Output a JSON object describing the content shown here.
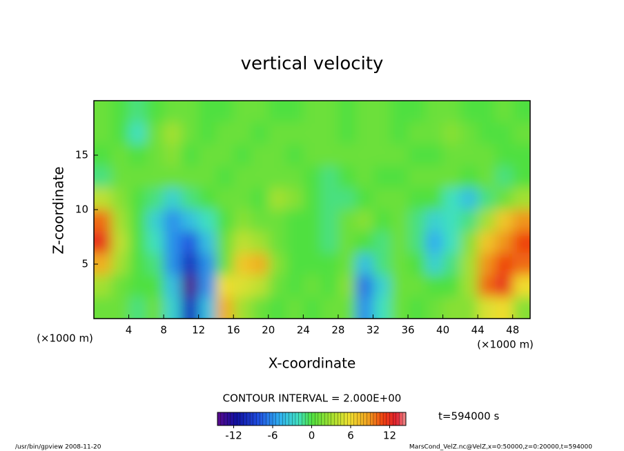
{
  "chart_data": {
    "type": "contour-fill",
    "title": "vertical velocity",
    "xlabel": "X-coordinate",
    "ylabel": "Z-coordinate",
    "x_unit": "(×1000 m)",
    "y_unit": "(×1000 m)",
    "contour_note": "CONTOUR INTERVAL = 2.000E+00",
    "time_label": "t=594000 s",
    "footer_left": "/usr/bin/gpview  2008-11-20",
    "footer_right": "MarsCond_VelZ.nc@VelZ,x=0:50000,z=0:20000,t=594000",
    "xlim": [
      0,
      50
    ],
    "xticks": [
      4,
      8,
      12,
      16,
      20,
      24,
      28,
      32,
      36,
      40,
      44,
      48
    ],
    "ylim": [
      0,
      20
    ],
    "yticks": [
      5,
      10,
      15
    ],
    "clim": [
      -14.5,
      14.5
    ],
    "cticks": [
      -12,
      -6,
      0,
      6,
      12
    ],
    "x": [
      1,
      3,
      5,
      7,
      9,
      11,
      13,
      15,
      17,
      19,
      21,
      23,
      25,
      27,
      29,
      31,
      33,
      35,
      37,
      39,
      41,
      43,
      45,
      47,
      49
    ],
    "y": [
      19,
      17,
      15,
      13,
      11,
      9,
      7,
      5,
      3,
      1
    ],
    "values": [
      [
        1,
        0,
        -1,
        0,
        1,
        1,
        0,
        0,
        1,
        1,
        0,
        0,
        1,
        1,
        0,
        1,
        1,
        0,
        0,
        1,
        1,
        0,
        0,
        1,
        0
      ],
      [
        1,
        0,
        -2,
        1,
        3,
        1,
        0,
        1,
        1,
        0,
        1,
        1,
        1,
        1,
        0,
        1,
        1,
        0,
        1,
        1,
        2,
        1,
        0,
        0,
        1
      ],
      [
        0,
        1,
        0,
        1,
        2,
        0,
        1,
        1,
        0,
        1,
        1,
        0,
        1,
        1,
        1,
        1,
        1,
        1,
        0,
        0,
        1,
        1,
        1,
        0,
        0
      ],
      [
        -1,
        1,
        1,
        1,
        1,
        1,
        1,
        0,
        1,
        1,
        1,
        1,
        0,
        -1,
        0,
        1,
        0,
        0,
        1,
        1,
        1,
        0,
        1,
        -1,
        0
      ],
      [
        4,
        2,
        0,
        -1,
        -3,
        -1,
        0,
        1,
        1,
        0,
        3,
        2,
        0,
        -1,
        -1,
        0,
        1,
        1,
        0,
        0,
        -2,
        -4,
        -1,
        1,
        3
      ],
      [
        10,
        3,
        0,
        -3,
        -6,
        -4,
        -2,
        0,
        2,
        1,
        1,
        0,
        0,
        -1,
        1,
        2,
        0,
        1,
        -1,
        -3,
        -2,
        -1,
        3,
        7,
        9
      ],
      [
        12,
        4,
        0,
        -2,
        -6,
        -8,
        -4,
        1,
        4,
        3,
        1,
        0,
        0,
        -1,
        1,
        0,
        -1,
        1,
        -1,
        -5,
        -2,
        2,
        7,
        9,
        11
      ],
      [
        8,
        3,
        0,
        -1,
        -6,
        -10,
        -6,
        1,
        7,
        8,
        2,
        0,
        0,
        0,
        1,
        -4,
        -1,
        1,
        0,
        -3,
        -1,
        3,
        9,
        11,
        10
      ],
      [
        3,
        1,
        0,
        0,
        -4,
        -14,
        -6,
        6,
        5,
        4,
        1,
        0,
        1,
        0,
        2,
        -7,
        -3,
        1,
        1,
        0,
        0,
        3,
        10,
        12,
        6
      ],
      [
        1,
        1,
        -1,
        1,
        -3,
        -10,
        -4,
        8,
        3,
        1,
        0,
        1,
        0,
        1,
        1,
        -6,
        -2,
        1,
        0,
        1,
        2,
        2,
        5,
        6,
        2
      ]
    ]
  }
}
